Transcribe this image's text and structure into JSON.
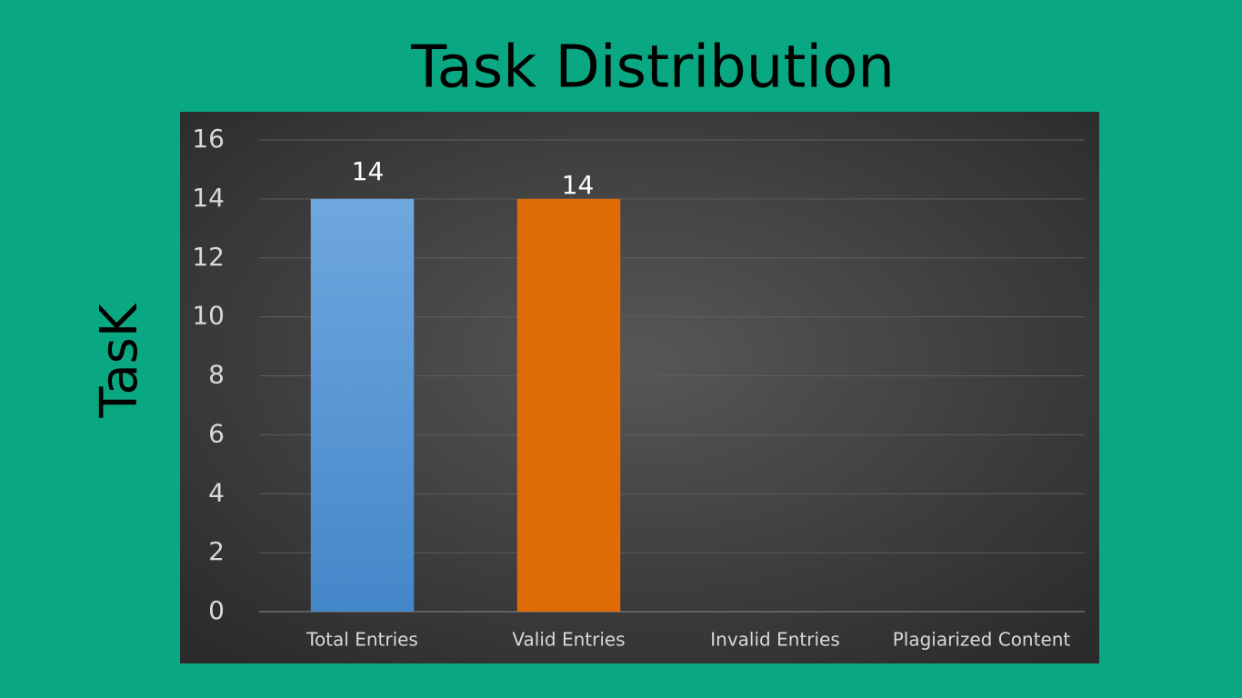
{
  "chart_data": {
    "type": "bar",
    "title": "Task Distribution",
    "y_label": "TasK",
    "categories": [
      "Total Entries",
      "Valid Entries",
      "Invalid Entries",
      "Plagiarized Content"
    ],
    "values": [
      14,
      14,
      0,
      0
    ],
    "colors": [
      "#5b9bd5",
      "#e06c05",
      "#a5a5a5",
      "#ffc000"
    ],
    "ylim": [
      0,
      16
    ],
    "yticks": [
      0,
      2,
      4,
      6,
      8,
      10,
      12,
      14,
      16
    ],
    "grid": true
  }
}
